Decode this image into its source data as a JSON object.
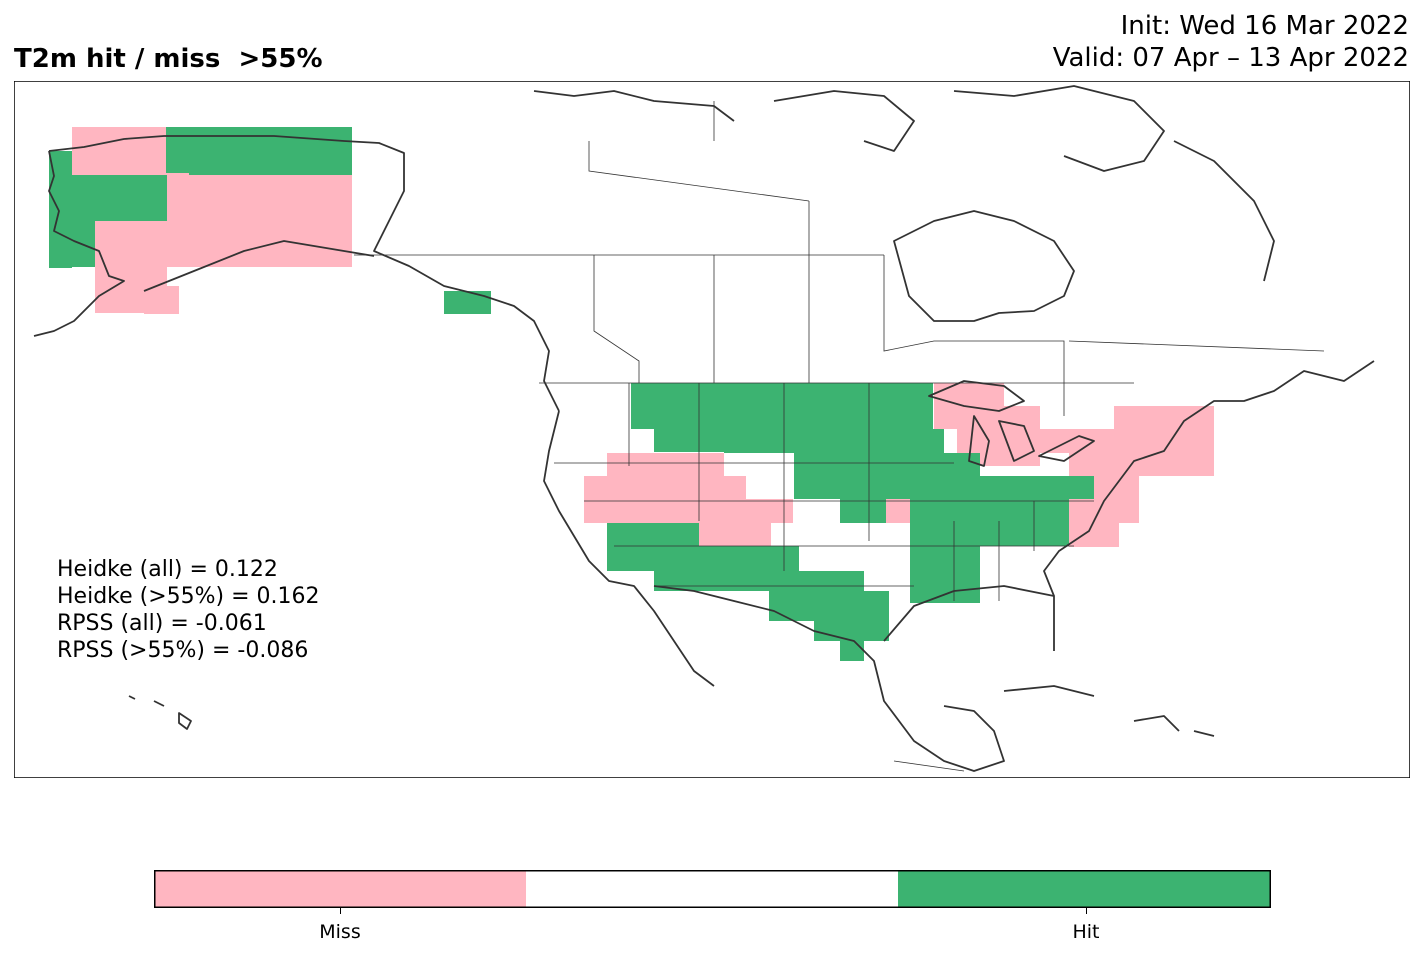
{
  "title": {
    "left": "T2m hit / miss  >55%",
    "init": "Init: Wed 16 Mar 2022",
    "valid": "Valid: 07 Apr – 13 Apr 2022"
  },
  "stats": [
    "Heidke (all) = 0.122",
    "Heidke (>55%) = 0.162",
    "RPSS (all) = -0.061",
    "RPSS (>55%) = -0.086"
  ],
  "colorbar": {
    "categories": [
      "Miss",
      "",
      "Hit"
    ],
    "colors": [
      "#ffb6c1",
      "#ffffff",
      "#3cb371"
    ],
    "labels": {
      "miss": "Miss",
      "hit": "Hit"
    }
  },
  "map_data": {
    "region": "North America",
    "categories": {
      "miss": "#ffb6c1",
      "hit": "#3cb371"
    },
    "alaska": {
      "miss_areas": [
        "northwest",
        "central",
        "southwest coast",
        "southeast peninsula"
      ],
      "hit_areas": [
        "northeast north slope",
        "west coast",
        "southeast panhandle"
      ]
    },
    "conus": {
      "hit_areas": [
        "Montana",
        "North Dakota",
        "South Dakota",
        "Minnesota",
        "Wisconsin",
        "Iowa",
        "Nebraska",
        "Illinois",
        "Indiana",
        "Ohio",
        "Kentucky",
        "Tennessee",
        "West Virginia",
        "Arizona",
        "New Mexico",
        "Southern California",
        "Texas"
      ],
      "miss_areas": [
        "Nevada",
        "Utah",
        "Northern Colorado",
        "Michigan",
        "New York",
        "Pennsylvania",
        "New England",
        "Virginia",
        "Maryland"
      ]
    }
  }
}
